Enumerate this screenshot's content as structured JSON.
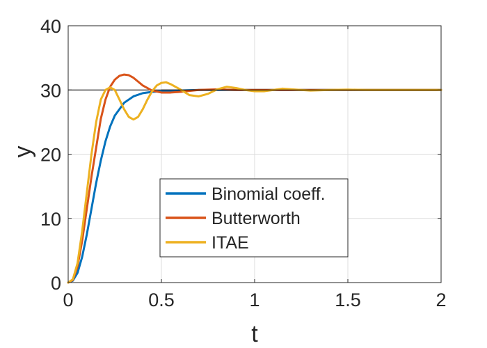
{
  "chart_data": {
    "type": "line",
    "xlabel": "t",
    "ylabel": "y",
    "xlim": [
      0,
      2
    ],
    "ylim": [
      0,
      40
    ],
    "xticks": [
      "0",
      "0.5",
      "1",
      "1.5",
      "2"
    ],
    "yticks": [
      "0",
      "10",
      "20",
      "30",
      "40"
    ],
    "xtick_values": [
      0,
      0.5,
      1,
      1.5,
      2
    ],
    "ytick_values": [
      0,
      10,
      20,
      30,
      40
    ],
    "grid": true,
    "reference_line": {
      "y": 30,
      "color": "#000000"
    },
    "legend_placement": "center-bottom",
    "series": [
      {
        "name": "Binomial coeff.",
        "color": "#0072BD",
        "points": [
          [
            0,
            0
          ],
          [
            0.025,
            0.3
          ],
          [
            0.05,
            1.5
          ],
          [
            0.075,
            4
          ],
          [
            0.1,
            7.5
          ],
          [
            0.125,
            11.5
          ],
          [
            0.15,
            15.5
          ],
          [
            0.175,
            19
          ],
          [
            0.2,
            22
          ],
          [
            0.225,
            24.3
          ],
          [
            0.25,
            26
          ],
          [
            0.3,
            28
          ],
          [
            0.35,
            29
          ],
          [
            0.4,
            29.5
          ],
          [
            0.45,
            29.7
          ],
          [
            0.5,
            29.8
          ],
          [
            0.6,
            29.9
          ],
          [
            0.7,
            30
          ],
          [
            0.8,
            30
          ],
          [
            1.0,
            30
          ],
          [
            1.5,
            30
          ],
          [
            2.0,
            30
          ]
        ]
      },
      {
        "name": "Butterworth",
        "color": "#D95319",
        "points": [
          [
            0,
            0
          ],
          [
            0.025,
            0.4
          ],
          [
            0.05,
            2.5
          ],
          [
            0.075,
            6.5
          ],
          [
            0.1,
            11.5
          ],
          [
            0.125,
            16.5
          ],
          [
            0.15,
            21
          ],
          [
            0.175,
            25.5
          ],
          [
            0.2,
            28.5
          ],
          [
            0.225,
            30.5
          ],
          [
            0.25,
            31.6
          ],
          [
            0.275,
            32.2
          ],
          [
            0.3,
            32.4
          ],
          [
            0.325,
            32.3
          ],
          [
            0.35,
            31.9
          ],
          [
            0.375,
            31.3
          ],
          [
            0.4,
            30.7
          ],
          [
            0.45,
            29.9
          ],
          [
            0.5,
            29.6
          ],
          [
            0.55,
            29.6
          ],
          [
            0.6,
            29.7
          ],
          [
            0.7,
            30
          ],
          [
            0.8,
            30.1
          ],
          [
            0.9,
            30
          ],
          [
            1.0,
            30
          ],
          [
            1.5,
            30
          ],
          [
            2.0,
            30
          ]
        ]
      },
      {
        "name": "ITAE",
        "color": "#EDB120",
        "points": [
          [
            0,
            0
          ],
          [
            0.025,
            0.5
          ],
          [
            0.05,
            3
          ],
          [
            0.075,
            8
          ],
          [
            0.1,
            14
          ],
          [
            0.125,
            20
          ],
          [
            0.15,
            25
          ],
          [
            0.175,
            28.5
          ],
          [
            0.2,
            30
          ],
          [
            0.225,
            30.4
          ],
          [
            0.25,
            30
          ],
          [
            0.275,
            28.5
          ],
          [
            0.3,
            27
          ],
          [
            0.325,
            25.8
          ],
          [
            0.35,
            25.4
          ],
          [
            0.375,
            25.8
          ],
          [
            0.4,
            27
          ],
          [
            0.425,
            28.5
          ],
          [
            0.45,
            29.8
          ],
          [
            0.475,
            30.7
          ],
          [
            0.5,
            31.1
          ],
          [
            0.525,
            31.2
          ],
          [
            0.55,
            30.9
          ],
          [
            0.6,
            30.1
          ],
          [
            0.65,
            29.2
          ],
          [
            0.7,
            29
          ],
          [
            0.75,
            29.4
          ],
          [
            0.8,
            30.1
          ],
          [
            0.85,
            30.5
          ],
          [
            0.9,
            30.3
          ],
          [
            0.95,
            30
          ],
          [
            1.0,
            29.8
          ],
          [
            1.05,
            29.8
          ],
          [
            1.1,
            30
          ],
          [
            1.15,
            30.2
          ],
          [
            1.2,
            30.1
          ],
          [
            1.3,
            29.9
          ],
          [
            1.4,
            30
          ],
          [
            1.5,
            30.05
          ],
          [
            1.6,
            30
          ],
          [
            1.8,
            30
          ],
          [
            2.0,
            30
          ]
        ]
      }
    ]
  }
}
